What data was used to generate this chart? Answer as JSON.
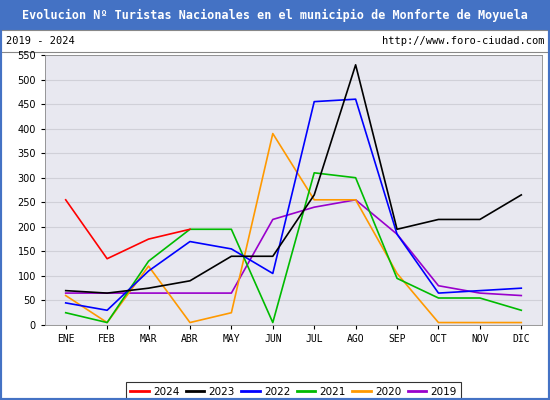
{
  "title": "Evolucion Nº Turistas Nacionales en el municipio de Monforte de Moyuela",
  "subtitle_left": "2019 - 2024",
  "subtitle_right": "http://www.foro-ciudad.com",
  "months": [
    "ENE",
    "FEB",
    "MAR",
    "ABR",
    "MAY",
    "JUN",
    "JUL",
    "AGO",
    "SEP",
    "OCT",
    "NOV",
    "DIC"
  ],
  "series": {
    "2024": {
      "color": "#ff0000",
      "data": [
        255,
        135,
        175,
        195,
        null,
        null,
        null,
        null,
        null,
        null,
        null,
        null
      ]
    },
    "2023": {
      "color": "#000000",
      "data": [
        70,
        65,
        75,
        90,
        140,
        140,
        265,
        530,
        195,
        215,
        215,
        265
      ]
    },
    "2022": {
      "color": "#0000ff",
      "data": [
        45,
        30,
        110,
        170,
        155,
        105,
        455,
        460,
        185,
        65,
        70,
        75
      ]
    },
    "2021": {
      "color": "#00bb00",
      "data": [
        25,
        5,
        130,
        195,
        195,
        5,
        310,
        300,
        95,
        55,
        55,
        30
      ]
    },
    "2020": {
      "color": "#ff9900",
      "data": [
        60,
        5,
        120,
        5,
        25,
        390,
        255,
        255,
        105,
        5,
        5,
        5
      ]
    },
    "2019": {
      "color": "#9900cc",
      "data": [
        65,
        65,
        65,
        65,
        65,
        215,
        240,
        255,
        185,
        80,
        65,
        60
      ]
    }
  },
  "ylim": [
    0,
    550
  ],
  "yticks": [
    0,
    50,
    100,
    150,
    200,
    250,
    300,
    350,
    400,
    450,
    500,
    550
  ],
  "title_bg_color": "#4472c4",
  "title_color": "#ffffff",
  "plot_bg_color": "#e8e8f0",
  "grid_color": "#d0d0d8",
  "border_color": "#4472c4",
  "legend_order": [
    "2024",
    "2023",
    "2022",
    "2021",
    "2020",
    "2019"
  ]
}
